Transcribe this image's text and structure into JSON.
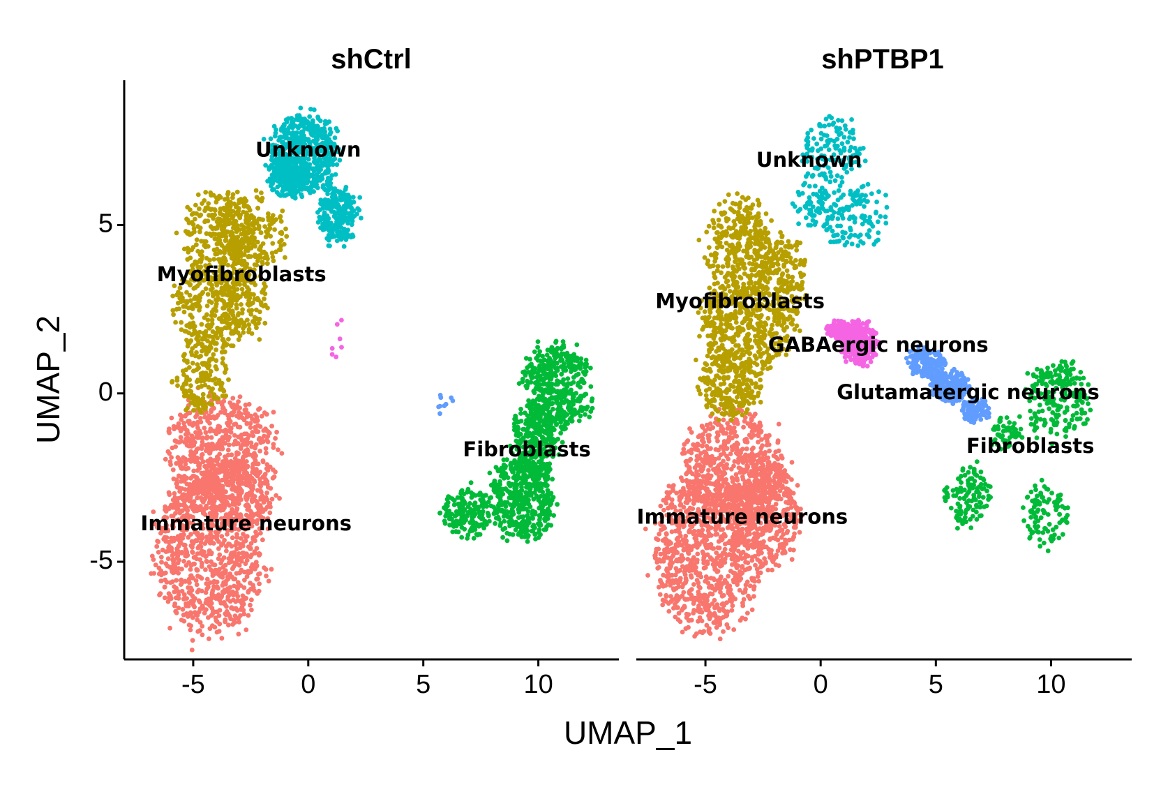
{
  "chart_data": {
    "type": "scatter",
    "xlabel": "UMAP_1",
    "ylabel": "UMAP_2",
    "xlim": [
      -8,
      13.5
    ],
    "ylim": [
      -7.9,
      9.3
    ],
    "xticks": [
      -5,
      0,
      5,
      10
    ],
    "yticks": [
      -5,
      0,
      5
    ],
    "xtick_labels": [
      "-5",
      "0",
      "5",
      "10"
    ],
    "ytick_labels": [
      "-5",
      "0",
      "5"
    ],
    "cluster_colors": {
      "Immature neurons": "#F8766D",
      "Myofibroblasts": "#B79F00",
      "Unknown": "#00BFC4",
      "Fibroblasts": "#00BA38",
      "GABAergic neurons": "#F564E3",
      "Glutamatergic neurons": "#619CFF"
    },
    "panels": [
      {
        "title": "shCtrl",
        "clusters": [
          {
            "name": "Immature neurons",
            "color": "#F8766D",
            "n": 1700,
            "blobs": [
              {
                "cx": -4.3,
                "cy": -4.6,
                "rx": 2.3,
                "ry": 2.5
              },
              {
                "cx": -3.8,
                "cy": -1.7,
                "rx": 2.3,
                "ry": 1.6
              },
              {
                "cx": -3.0,
                "cy": -3.0,
                "rx": 1.6,
                "ry": 1.1
              }
            ]
          },
          {
            "name": "Myofibroblasts",
            "color": "#B79F00",
            "n": 1050,
            "blobs": [
              {
                "cx": -3.9,
                "cy": 4.7,
                "rx": 1.5,
                "ry": 1.3
              },
              {
                "cx": -2.5,
                "cy": 4.8,
                "rx": 1.5,
                "ry": 1.2
              },
              {
                "cx": -4.4,
                "cy": 2.5,
                "rx": 1.4,
                "ry": 1.4
              },
              {
                "cx": -4.6,
                "cy": 0.5,
                "rx": 1.1,
                "ry": 1.1
              },
              {
                "cx": -2.9,
                "cy": 2.8,
                "rx": 1.1,
                "ry": 1.2
              }
            ]
          },
          {
            "name": "Unknown",
            "color": "#00BFC4",
            "n": 950,
            "blobs": [
              {
                "cx": -0.2,
                "cy": 7.1,
                "rx": 1.5,
                "ry": 1.2
              },
              {
                "cx": 1.3,
                "cy": 5.3,
                "rx": 0.9,
                "ry": 0.8
              },
              {
                "cx": -1.0,
                "cy": 6.4,
                "rx": 0.8,
                "ry": 0.6
              }
            ]
          },
          {
            "name": "Fibroblasts",
            "color": "#00BA38",
            "n": 1350,
            "blobs": [
              {
                "cx": 10.8,
                "cy": 0.2,
                "rx": 1.4,
                "ry": 1.3
              },
              {
                "cx": 9.3,
                "cy": -3.1,
                "rx": 1.4,
                "ry": 1.2
              },
              {
                "cx": 6.9,
                "cy": -3.5,
                "rx": 1.1,
                "ry": 0.7
              },
              {
                "cx": 9.8,
                "cy": -1.5,
                "rx": 1.0,
                "ry": 1.2
              }
            ]
          },
          {
            "name": "GABAergic neurons",
            "color": "#F564E3",
            "n": 7,
            "blobs": [
              {
                "cx": 1.3,
                "cy": 1.6,
                "rx": 0.3,
                "ry": 0.7
              }
            ]
          },
          {
            "name": "Glutamatergic neurons",
            "color": "#619CFF",
            "n": 9,
            "blobs": [
              {
                "cx": 5.8,
                "cy": -0.3,
                "rx": 0.5,
                "ry": 0.3
              }
            ]
          }
        ],
        "labels": [
          {
            "text": "Unknown",
            "x": 0.0,
            "y": 7.2
          },
          {
            "text": "Myofibroblasts",
            "x": -2.9,
            "y": 3.5
          },
          {
            "text": "Fibroblasts",
            "x": 9.5,
            "y": -1.7
          },
          {
            "text": "Immature neurons",
            "x": -2.7,
            "y": -3.9
          }
        ]
      },
      {
        "title": "shPTBP1",
        "clusters": [
          {
            "name": "Immature neurons",
            "color": "#F8766D",
            "n": 1900,
            "blobs": [
              {
                "cx": -4.9,
                "cy": -4.6,
                "rx": 2.3,
                "ry": 2.4
              },
              {
                "cx": -3.8,
                "cy": -2.2,
                "rx": 2.2,
                "ry": 1.6
              },
              {
                "cx": -2.4,
                "cy": -3.5,
                "rx": 1.5,
                "ry": 1.6
              }
            ]
          },
          {
            "name": "Myofibroblasts",
            "color": "#B79F00",
            "n": 1250,
            "blobs": [
              {
                "cx": -3.5,
                "cy": 4.3,
                "rx": 1.5,
                "ry": 1.6
              },
              {
                "cx": -3.3,
                "cy": 2.0,
                "rx": 2.0,
                "ry": 1.4
              },
              {
                "cx": -3.9,
                "cy": 0.3,
                "rx": 1.4,
                "ry": 1.0
              },
              {
                "cx": -1.6,
                "cy": 3.4,
                "rx": 1.0,
                "ry": 1.3
              }
            ]
          },
          {
            "name": "Unknown",
            "color": "#00BFC4",
            "n": 330,
            "blobs": [
              {
                "cx": 0.4,
                "cy": 7.2,
                "rx": 1.3,
                "ry": 1.0
              },
              {
                "cx": 1.3,
                "cy": 5.3,
                "rx": 1.6,
                "ry": 0.9
              },
              {
                "cx": -0.4,
                "cy": 5.6,
                "rx": 0.9,
                "ry": 0.7
              }
            ]
          },
          {
            "name": "GABAergic neurons",
            "color": "#F564E3",
            "n": 420,
            "blobs": [
              {
                "cx": 1.7,
                "cy": 1.5,
                "rx": 0.8,
                "ry": 0.6
              },
              {
                "cx": 0.8,
                "cy": 1.9,
                "rx": 0.5,
                "ry": 0.3
              }
            ]
          },
          {
            "name": "Glutamatergic neurons",
            "color": "#619CFF",
            "n": 420,
            "blobs": [
              {
                "cx": 4.6,
                "cy": 0.9,
                "rx": 0.8,
                "ry": 0.45
              },
              {
                "cx": 5.6,
                "cy": 0.2,
                "rx": 0.8,
                "ry": 0.45
              },
              {
                "cx": 6.7,
                "cy": -0.5,
                "rx": 0.7,
                "ry": 0.35
              }
            ]
          },
          {
            "name": "Fibroblasts",
            "color": "#00BA38",
            "n": 480,
            "blobs": [
              {
                "cx": 8.0,
                "cy": -1.2,
                "rx": 0.7,
                "ry": 0.5
              },
              {
                "cx": 10.3,
                "cy": -0.2,
                "rx": 1.4,
                "ry": 1.2
              },
              {
                "cx": 6.4,
                "cy": -3.1,
                "rx": 1.0,
                "ry": 0.9
              },
              {
                "cx": 9.8,
                "cy": -3.6,
                "rx": 1.0,
                "ry": 0.9
              }
            ]
          }
        ],
        "labels": [
          {
            "text": "Unknown",
            "x": -0.5,
            "y": 6.9
          },
          {
            "text": "Myofibroblasts",
            "x": -3.5,
            "y": 2.7
          },
          {
            "text": "GABAergic neurons",
            "x": 2.5,
            "y": 1.4
          },
          {
            "text": "Glutamatergic neurons",
            "x": 6.4,
            "y": 0.0
          },
          {
            "text": "Fibroblasts",
            "x": 9.1,
            "y": -1.6
          },
          {
            "text": "Immature neurons",
            "x": -3.4,
            "y": -3.7
          }
        ]
      }
    ]
  }
}
